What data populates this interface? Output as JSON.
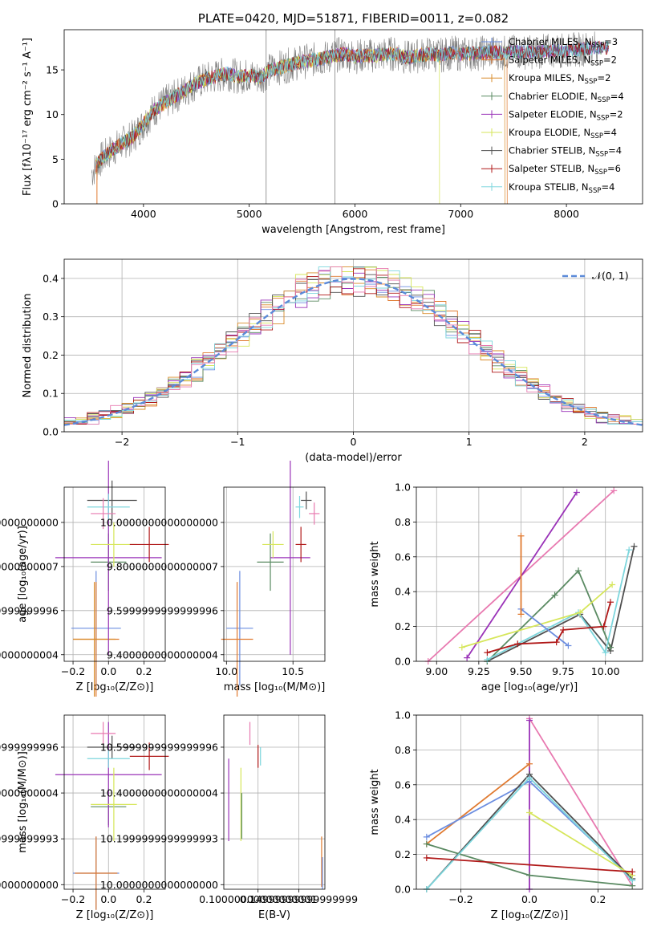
{
  "chart_data": [
    {
      "id": "spectrum",
      "type": "line",
      "title": "PLATE=0420, MJD=51871, FIBERID=0011, z=0.082",
      "xlabel": "wavelength [Angstrom, rest frame]",
      "ylabel": "Flux [fλ10⁻¹⁷ erg cm⁻² s⁻¹ A⁻¹]",
      "xlim": [
        3250,
        8720
      ],
      "ylim": [
        0,
        19.5
      ],
      "xticks": [
        4000,
        5000,
        6000,
        7000,
        8000
      ],
      "yticks": [
        0,
        5,
        10,
        15
      ],
      "grid": false,
      "legend_position": "upper right",
      "data_trace": {
        "color": "#808080",
        "x": [
          3510,
          3600,
          3700,
          3800,
          3900,
          4000,
          4100,
          4200,
          4300,
          4400,
          4500,
          4600,
          4700,
          4800,
          4900,
          5000,
          5100,
          5200,
          5300,
          5400,
          5500,
          5600,
          5700,
          5800,
          5900,
          6000,
          6100,
          6200,
          6300,
          6400,
          6500,
          6600,
          6700,
          6800,
          6900,
          7000,
          7100,
          7200,
          7300,
          7400,
          7500,
          7600,
          7700,
          7800,
          7900,
          8000,
          8100,
          8200,
          8300
        ],
        "y": [
          3.5,
          5.0,
          6.0,
          6.8,
          7.5,
          9.0,
          10.5,
          11.3,
          12.0,
          12.8,
          13.5,
          14.0,
          14.3,
          14.6,
          14.2,
          14.4,
          14.1,
          15.0,
          15.3,
          15.6,
          15.9,
          16.1,
          16.3,
          16.6,
          16.8,
          16.5,
          16.6,
          16.6,
          16.8,
          16.8,
          16.3,
          16.6,
          16.8,
          16.6,
          16.9,
          16.8,
          16.8,
          16.9,
          17.0,
          16.9,
          17.0,
          17.0,
          17.0,
          17.1,
          17.2,
          17.1,
          17.3,
          17.4,
          17.5
        ]
      },
      "spikes_x": [
        5160,
        5810
      ],
      "series": [
        {
          "name": "Chabrier MILES",
          "nssp": "3",
          "color": "#6c8ee0"
        },
        {
          "name": "Salpeter MILES",
          "nssp": "2",
          "color": "#e07a30"
        },
        {
          "name": "Kroupa MILES",
          "nssp": "2",
          "color": "#d98c2b"
        },
        {
          "name": "Chabrier ELODIE",
          "nssp": "4",
          "color": "#5a8a62"
        },
        {
          "name": "Salpeter ELODIE",
          "nssp": "2",
          "color": "#9a32b8"
        },
        {
          "name": "Kroupa ELODIE",
          "nssp": "4",
          "color": "#d6e65a"
        },
        {
          "name": "Chabrier STELIB",
          "nssp": "4",
          "color": "#505050"
        },
        {
          "name": "Salpeter STELIB",
          "nssp": "6",
          "color": "#b01818"
        },
        {
          "name": "Kroupa STELIB",
          "nssp": "4",
          "color": "#7dd6dd"
        }
      ]
    },
    {
      "id": "residuals",
      "type": "line",
      "xlabel": "(data-model)/error",
      "ylabel": "Normed distribution",
      "xlim": [
        -2.5,
        2.5
      ],
      "ylim": [
        0,
        0.45
      ],
      "xticks": [
        -2,
        -1,
        0,
        1,
        2
      ],
      "yticks": [
        0.0,
        0.1,
        0.2,
        0.3,
        0.4
      ],
      "grid": true,
      "legend_position": "upper right",
      "reference": {
        "name": "𝒩(0, 1)",
        "mean": 0,
        "std": 1,
        "color": "#5b8ad8"
      }
    },
    {
      "id": "age-vs-z",
      "type": "scatter",
      "xlabel": "Z [log₁₀(Z/Z⊙)]",
      "ylabel": "age  [log₁₀(age/yr)]",
      "xlim": [
        -0.25,
        0.32
      ],
      "ylim": [
        9.37,
        10.16
      ],
      "xticks": [
        -0.2,
        0.0,
        0.2
      ],
      "yticks": [
        9.4,
        9.6,
        9.8,
        10.0
      ],
      "grid": true,
      "points": [
        {
          "color": "#6c8ee0",
          "x": -0.07,
          "y": 9.52,
          "xerr": 0.14,
          "yerr": 0.26
        },
        {
          "color": "#e07a30",
          "x": -0.07,
          "y": 9.47,
          "xerr": 0.13,
          "yerr": 0.26
        },
        {
          "color": "#d98c2b",
          "x": -0.08,
          "y": 9.47,
          "xerr": 0.12,
          "yerr": 0.26
        },
        {
          "color": "#5a8a62",
          "x": 0.0,
          "y": 9.82,
          "xerr": 0.1,
          "yerr": 0.13
        },
        {
          "color": "#9a32b8",
          "x": 0.0,
          "y": 9.84,
          "xerr": 0.3,
          "yerr": 0.44
        },
        {
          "color": "#d6e65a",
          "x": 0.03,
          "y": 9.9,
          "xerr": 0.13,
          "yerr": 0.1
        },
        {
          "color": "#505050",
          "x": 0.02,
          "y": 10.1,
          "xerr": 0.14,
          "yerr": 0.09
        },
        {
          "color": "#b01818",
          "x": 0.23,
          "y": 9.9,
          "xerr": 0.11,
          "yerr": 0.08
        },
        {
          "color": "#7dd6dd",
          "x": 0.0,
          "y": 10.07,
          "xerr": 0.12,
          "yerr": 0.06
        },
        {
          "color": "#e879b0",
          "x": -0.03,
          "y": 10.04,
          "xerr": 0.07,
          "yerr": 0.07
        }
      ]
    },
    {
      "id": "age-vs-mass",
      "type": "scatter",
      "xlabel": "mass [log₁₀(M/M⊙)]",
      "xlim": [
        9.98,
        10.74
      ],
      "ylim": [
        9.37,
        10.16
      ],
      "xticks": [
        10.0,
        10.5
      ],
      "yticks": [
        9.4,
        9.6,
        9.8,
        10.0
      ],
      "grid": true,
      "points": [
        {
          "color": "#6c8ee0",
          "x": 10.1,
          "y": 9.52,
          "xerr": 0.1,
          "yerr": 0.26
        },
        {
          "color": "#e07a30",
          "x": 10.08,
          "y": 9.47,
          "xerr": 0.12,
          "yerr": 0.26
        },
        {
          "color": "#5a8a62",
          "x": 10.33,
          "y": 9.82,
          "xerr": 0.1,
          "yerr": 0.13
        },
        {
          "color": "#9a32b8",
          "x": 10.48,
          "y": 9.84,
          "xerr": 0.15,
          "yerr": 0.44
        },
        {
          "color": "#d6e65a",
          "x": 10.35,
          "y": 9.9,
          "xerr": 0.08,
          "yerr": 0.06
        },
        {
          "color": "#505050",
          "x": 10.6,
          "y": 10.1,
          "xerr": 0.04,
          "yerr": 0.04
        },
        {
          "color": "#b01818",
          "x": 10.56,
          "y": 9.9,
          "xerr": 0.04,
          "yerr": 0.08
        },
        {
          "color": "#7dd6dd",
          "x": 10.55,
          "y": 10.07,
          "xerr": 0.03,
          "yerr": 0.05
        },
        {
          "color": "#e879b0",
          "x": 10.66,
          "y": 10.04,
          "xerr": 0.04,
          "yerr": 0.05
        }
      ]
    },
    {
      "id": "mass-weight-vs-age",
      "type": "line",
      "xlabel": "age  [log₁₀(age/yr)]",
      "ylabel": "mass weight",
      "xlim": [
        8.88,
        10.22
      ],
      "ylim": [
        0,
        1.0
      ],
      "xticks": [
        9.0,
        9.25,
        9.5,
        9.75,
        10.0
      ],
      "yticks": [
        0.0,
        0.2,
        0.4,
        0.6,
        0.8,
        1.0
      ],
      "grid": true,
      "series": [
        {
          "color": "#e879b0",
          "x": [
            8.95,
            10.05
          ],
          "y": [
            0.0,
            0.98
          ]
        },
        {
          "color": "#9a32b8",
          "x": [
            9.18,
            9.83
          ],
          "y": [
            0.02,
            0.97
          ]
        },
        {
          "color": "#505050",
          "x": [
            9.3,
            9.85,
            10.03,
            10.17
          ],
          "y": [
            0.0,
            0.27,
            0.06,
            0.66
          ]
        },
        {
          "color": "#5a8a62",
          "x": [
            9.3,
            9.7,
            9.84,
            10.03
          ],
          "y": [
            0.0,
            0.38,
            0.52,
            0.08
          ]
        },
        {
          "color": "#7dd6dd",
          "x": [
            9.3,
            9.84,
            10.0,
            10.14
          ],
          "y": [
            0.01,
            0.28,
            0.05,
            0.64
          ]
        },
        {
          "color": "#d6e65a",
          "x": [
            9.15,
            9.85,
            10.04
          ],
          "y": [
            0.08,
            0.28,
            0.44
          ]
        },
        {
          "color": "#6c8ee0",
          "x": [
            9.5,
            9.78
          ],
          "y": [
            0.3,
            0.09
          ]
        },
        {
          "color": "#b01818",
          "x": [
            9.3,
            9.48,
            9.71,
            9.75,
            9.99,
            10.03
          ],
          "y": [
            0.05,
            0.1,
            0.11,
            0.18,
            0.2,
            0.34
          ]
        },
        {
          "color": "#e07a30",
          "x": [
            9.5,
            9.5
          ],
          "y": [
            0.27,
            0.72
          ]
        }
      ]
    },
    {
      "id": "mass-vs-z",
      "type": "scatter",
      "xlabel": "Z [log₁₀(Z/Z⊙)]",
      "ylabel": "mass [log₁₀(M/M⊙)]",
      "xlim": [
        -0.25,
        0.32
      ],
      "ylim": [
        9.98,
        10.74
      ],
      "xticks": [
        -0.2,
        0.0,
        0.2
      ],
      "yticks": [
        10.0,
        10.2,
        10.4,
        10.6
      ],
      "grid": true,
      "points": [
        {
          "color": "#6c8ee0",
          "x": -0.07,
          "y": 10.05,
          "xerr": 0.13,
          "yerr": 0.16
        },
        {
          "color": "#e07a30",
          "x": -0.07,
          "y": 10.05,
          "xerr": 0.12,
          "yerr": 0.16
        },
        {
          "color": "#5a8a62",
          "x": 0.0,
          "y": 10.34,
          "xerr": 0.1,
          "yerr": 0.08
        },
        {
          "color": "#9a32b8",
          "x": 0.0,
          "y": 10.48,
          "xerr": 0.3,
          "yerr": 0.23
        },
        {
          "color": "#d6e65a",
          "x": 0.03,
          "y": 10.35,
          "xerr": 0.13,
          "yerr": 0.16
        },
        {
          "color": "#505050",
          "x": 0.02,
          "y": 10.6,
          "xerr": 0.14,
          "yerr": 0.05
        },
        {
          "color": "#b01818",
          "x": 0.23,
          "y": 10.56,
          "xerr": 0.11,
          "yerr": 0.06
        },
        {
          "color": "#7dd6dd",
          "x": 0.0,
          "y": 10.55,
          "xerr": 0.12,
          "yerr": 0.04
        },
        {
          "color": "#e879b0",
          "x": -0.03,
          "y": 10.66,
          "xerr": 0.07,
          "yerr": 0.05
        }
      ]
    },
    {
      "id": "mass-vs-ebv",
      "type": "scatter",
      "xlabel": "E(B-V)",
      "xlim": [
        0.058,
        0.182
      ],
      "ylim": [
        9.98,
        10.74
      ],
      "xticks": [
        0.1,
        0.15
      ],
      "yticks": [
        10.0,
        10.2,
        10.4,
        10.6
      ],
      "grid": true,
      "points": [
        {
          "color": "#9a32b8",
          "x": 0.064,
          "y": 10.37,
          "yerr": 0.18
        },
        {
          "color": "#d6e65a",
          "x": 0.079,
          "y": 10.35,
          "yerr": 0.16
        },
        {
          "color": "#5a8a62",
          "x": 0.08,
          "y": 10.3,
          "yerr": 0.1
        },
        {
          "color": "#e879b0",
          "x": 0.09,
          "y": 10.66,
          "yerr": 0.05
        },
        {
          "color": "#b01818",
          "x": 0.1,
          "y": 10.56,
          "yerr": 0.05
        },
        {
          "color": "#7dd6dd",
          "x": 0.103,
          "y": 10.56,
          "yerr": 0.04
        },
        {
          "color": "#e07a30",
          "x": 0.178,
          "y": 10.1,
          "yerr": 0.11
        },
        {
          "color": "#6c8ee0",
          "x": 0.179,
          "y": 10.05,
          "yerr": 0.07
        }
      ]
    },
    {
      "id": "mass-weight-vs-z",
      "type": "line",
      "xlabel": "Z [log₁₀(Z/Z⊙)]",
      "ylabel": "mass weight",
      "xlim": [
        -0.33,
        0.33
      ],
      "ylim": [
        0,
        1.0
      ],
      "xticks": [
        -0.2,
        0.0,
        0.2
      ],
      "yticks": [
        0.0,
        0.2,
        0.4,
        0.6,
        0.8,
        1.0
      ],
      "grid": true,
      "series": [
        {
          "color": "#e879b0",
          "x": [
            0.0,
            0.3
          ],
          "y": [
            0.98,
            0.02
          ]
        },
        {
          "color": "#9a32b8",
          "x": [
            0.0,
            0.0
          ],
          "y": [
            0.0,
            0.97
          ]
        },
        {
          "color": "#e07a30",
          "x": [
            -0.3,
            0.0
          ],
          "y": [
            0.26,
            0.72
          ]
        },
        {
          "color": "#6c8ee0",
          "x": [
            -0.3,
            0.0,
            0.3
          ],
          "y": [
            0.3,
            0.62,
            0.06
          ]
        },
        {
          "color": "#505050",
          "x": [
            -0.3,
            0.0,
            0.3
          ],
          "y": [
            0.0,
            0.66,
            0.06
          ]
        },
        {
          "color": "#5a8a62",
          "x": [
            -0.3,
            0.0,
            0.3
          ],
          "y": [
            0.26,
            0.08,
            0.02
          ]
        },
        {
          "color": "#7dd6dd",
          "x": [
            -0.3,
            0.0,
            0.3
          ],
          "y": [
            0.0,
            0.64,
            0.05
          ]
        },
        {
          "color": "#d6e65a",
          "x": [
            0.0,
            0.3
          ],
          "y": [
            0.44,
            0.08
          ]
        },
        {
          "color": "#b01818",
          "x": [
            -0.3,
            0.3
          ],
          "y": [
            0.18,
            0.1
          ]
        }
      ]
    }
  ]
}
